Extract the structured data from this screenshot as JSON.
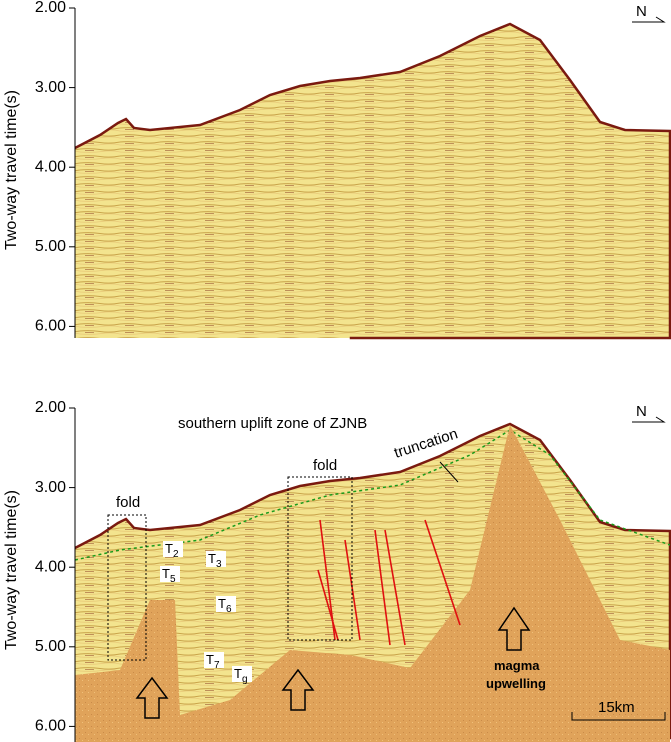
{
  "panels": [
    {
      "y_label": "Two-way travel time(s)",
      "yticks": [
        "2.00",
        "3.00",
        "4.00",
        "5.00",
        "6.00"
      ],
      "north": "N"
    },
    {
      "y_label": "Two-way travel time(s)",
      "yticks": [
        "2.00",
        "3.00",
        "4.00",
        "5.00",
        "6.00"
      ],
      "north": "N",
      "title": "southern uplift zone of ZJNB",
      "annotations": {
        "fold_left": "fold",
        "fold_right": "fold",
        "truncation": "truncation",
        "magma_line1": "magma",
        "magma_line2": "upwelling",
        "scale": "15km"
      },
      "horizons": [
        {
          "base": "T",
          "sub": "2"
        },
        {
          "base": "T",
          "sub": "3"
        },
        {
          "base": "T",
          "sub": "5"
        },
        {
          "base": "T",
          "sub": "6"
        },
        {
          "base": "T",
          "sub": "7"
        },
        {
          "base": "T",
          "sub": "g"
        }
      ]
    }
  ]
}
